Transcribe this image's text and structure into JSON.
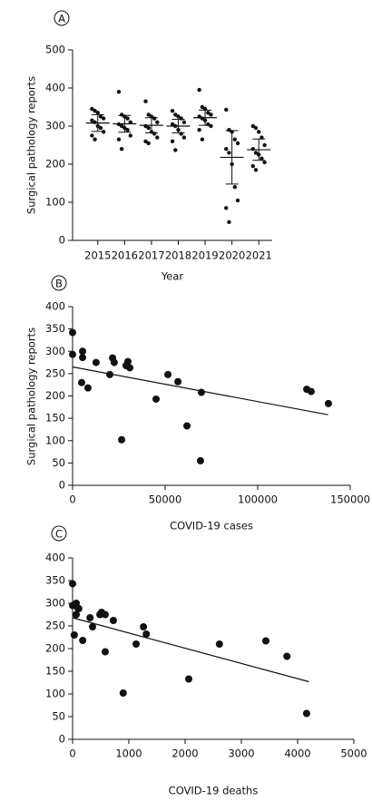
{
  "chart_data": [
    {
      "type": "strip",
      "panel_label": "A",
      "x_label": "Year",
      "y_label": "Surgical pathology reports",
      "categories": [
        "2015",
        "2016",
        "2017",
        "2018",
        "2019",
        "2020",
        "2021"
      ],
      "points": [
        [
          345,
          340,
          335,
          325,
          320,
          315,
          310,
          300,
          295,
          285,
          275,
          265
        ],
        [
          390,
          330,
          325,
          320,
          310,
          305,
          300,
          295,
          290,
          275,
          265,
          240
        ],
        [
          365,
          330,
          325,
          320,
          310,
          300,
          295,
          285,
          280,
          270,
          260,
          255
        ],
        [
          340,
          330,
          325,
          320,
          310,
          305,
          300,
          290,
          280,
          270,
          260,
          237
        ],
        [
          395,
          350,
          345,
          335,
          330,
          325,
          320,
          315,
          305,
          300,
          290,
          265
        ],
        [
          343,
          290,
          285,
          265,
          255,
          240,
          230,
          200,
          140,
          105,
          85,
          48
        ],
        [
          300,
          295,
          285,
          270,
          250,
          240,
          230,
          225,
          215,
          205,
          195,
          185
        ]
      ],
      "means": [
        308,
        306,
        302,
        300,
        322,
        218,
        238
      ],
      "errors": [
        22,
        22,
        20,
        18,
        20,
        70,
        28
      ],
      "color": "#111111",
      "ylim": [
        0,
        500
      ],
      "yticks": [
        0,
        100,
        200,
        300,
        400,
        500
      ]
    },
    {
      "type": "scatter",
      "panel_label": "B",
      "x_label": "COVID-19 cases",
      "y_label": "Surgical pathology reports",
      "x": [
        0,
        0,
        5400,
        5400,
        4900,
        8300,
        12700,
        20100,
        21600,
        22500,
        26500,
        28900,
        29900,
        30900,
        45100,
        51500,
        56900,
        61800,
        69600,
        69100,
        126500,
        128900,
        138200
      ],
      "y": [
        342,
        293,
        300,
        286,
        230,
        218,
        275,
        248,
        285,
        275,
        102,
        268,
        277,
        263,
        193,
        248,
        232,
        133,
        208,
        55,
        215,
        210,
        183
      ],
      "trend_x": [
        0,
        138000
      ],
      "trend_y": [
        265,
        158
      ],
      "color": "#111111",
      "xlim": [
        0,
        150000
      ],
      "xticks": [
        0,
        50000,
        100000,
        150000
      ],
      "ylim": [
        0,
        400
      ],
      "yticks": [
        0,
        50,
        100,
        150,
        200,
        250,
        300,
        350,
        400
      ]
    },
    {
      "type": "scatter",
      "panel_label": "C",
      "x_label": "COVID-19 deaths",
      "x": [
        0,
        0,
        30,
        65,
        65,
        95,
        110,
        180,
        310,
        355,
        485,
        515,
        580,
        580,
        725,
        900,
        1130,
        1260,
        1310,
        2065,
        2610,
        3435,
        3810,
        4160
      ],
      "y": [
        343,
        295,
        230,
        300,
        275,
        289,
        288,
        218,
        268,
        248,
        275,
        280,
        275,
        193,
        262,
        102,
        210,
        248,
        232,
        133,
        210,
        217,
        183,
        57
      ],
      "trend_x": [
        0,
        4200
      ],
      "trend_y": [
        268,
        127
      ],
      "color": "#111111",
      "xlim": [
        0,
        5000
      ],
      "xticks": [
        0,
        1000,
        2000,
        3000,
        4000,
        5000
      ],
      "ylim": [
        0,
        400
      ],
      "yticks": [
        0,
        50,
        100,
        150,
        200,
        250,
        300,
        350,
        400
      ]
    }
  ]
}
